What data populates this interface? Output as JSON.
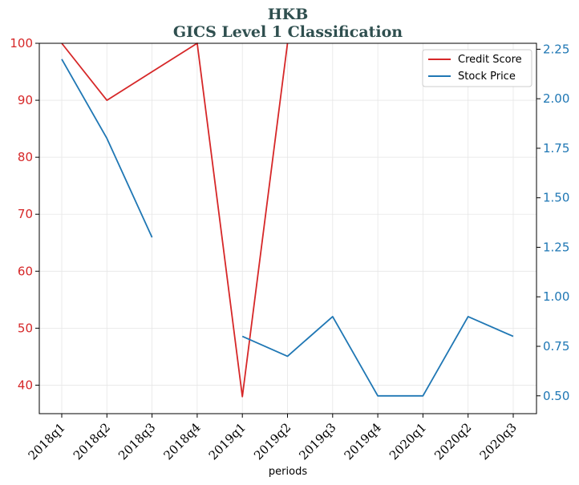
{
  "chart_data": {
    "type": "line",
    "title": "HKB",
    "subtitle": "GICS Level 1 Classification",
    "xlabel": "periods",
    "categories": [
      "2018q1",
      "2018q2",
      "2018q3",
      "2018q4",
      "2019q1",
      "2019q2",
      "2019q3",
      "2019q4",
      "2020q1",
      "2020q2",
      "2020q3"
    ],
    "y_left": {
      "ticks": [
        40,
        50,
        60,
        70,
        80,
        90,
        100
      ],
      "ylim": [
        35,
        100
      ],
      "color": "#d62728"
    },
    "y_right": {
      "ticks": [
        "0.50",
        "0.75",
        "1.00",
        "1.25",
        "1.50",
        "1.75",
        "2.00",
        "2.25"
      ],
      "ylim": [
        0.41,
        2.28
      ],
      "color": "#1f77b4"
    },
    "grid": true,
    "legend_position": "top-right",
    "series": [
      {
        "name": "Credit Score",
        "axis": "left",
        "color": "#d62728",
        "values": [
          100,
          90,
          95,
          100,
          38,
          100,
          null,
          null,
          null,
          null,
          null
        ]
      },
      {
        "name": "Stock Price",
        "axis": "right",
        "color": "#1f77b4",
        "values": [
          2.2,
          1.8,
          1.3,
          null,
          0.8,
          0.7,
          0.9,
          0.5,
          0.5,
          0.9,
          0.8
        ]
      }
    ]
  }
}
